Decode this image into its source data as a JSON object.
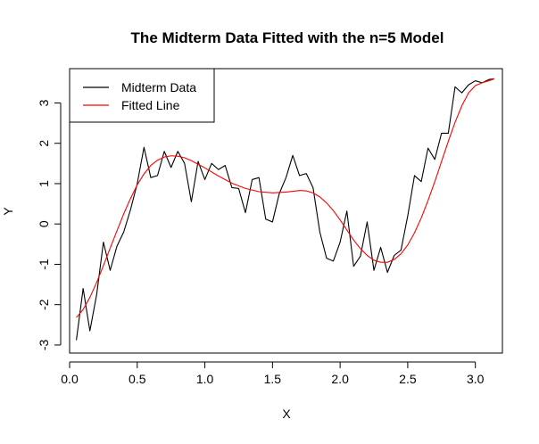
{
  "chart_data": {
    "type": "line",
    "title": "The Midterm Data Fitted with the n=5 Model",
    "xlabel": "X",
    "ylabel": "Y",
    "xlim": [
      0.0,
      3.2
    ],
    "ylim": [
      -3.2,
      3.85
    ],
    "xticks": [
      "0.0",
      "0.5",
      "1.0",
      "1.5",
      "2.0",
      "2.5",
      "3.0"
    ],
    "xtick_values": [
      0.0,
      0.5,
      1.0,
      1.5,
      2.0,
      2.5,
      3.0
    ],
    "yticks": [
      "-3",
      "-2",
      "-1",
      "0",
      "1",
      "2",
      "3"
    ],
    "ytick_values": [
      -3,
      -2,
      -1,
      0,
      1,
      2,
      3
    ],
    "legend_position": "top-left",
    "grid": false,
    "series": [
      {
        "name": "Midterm Data",
        "color": "#000000",
        "x": [
          0.05,
          0.1,
          0.15,
          0.2,
          0.25,
          0.3,
          0.35,
          0.4,
          0.45,
          0.5,
          0.55,
          0.6,
          0.65,
          0.7,
          0.75,
          0.8,
          0.85,
          0.9,
          0.95,
          1.0,
          1.05,
          1.1,
          1.15,
          1.2,
          1.25,
          1.3,
          1.35,
          1.4,
          1.45,
          1.5,
          1.55,
          1.6,
          1.65,
          1.7,
          1.75,
          1.8,
          1.85,
          1.9,
          1.95,
          2.0,
          2.05,
          2.1,
          2.15,
          2.2,
          2.25,
          2.3,
          2.35,
          2.4,
          2.45,
          2.5,
          2.55,
          2.6,
          2.65,
          2.7,
          2.75,
          2.8,
          2.85,
          2.9,
          2.95,
          3.0,
          3.05,
          3.1,
          3.14
        ],
        "y": [
          -2.88,
          -1.6,
          -2.65,
          -1.75,
          -0.45,
          -1.15,
          -0.55,
          -0.2,
          0.35,
          1.0,
          1.9,
          1.15,
          1.2,
          1.8,
          1.4,
          1.8,
          1.5,
          0.55,
          1.55,
          1.1,
          1.5,
          1.35,
          1.45,
          0.9,
          0.88,
          0.28,
          1.1,
          1.15,
          0.12,
          0.05,
          0.75,
          1.15,
          1.7,
          1.2,
          1.25,
          0.9,
          -0.2,
          -0.85,
          -0.92,
          -0.45,
          0.32,
          -1.05,
          -0.8,
          0.05,
          -1.15,
          -0.58,
          -1.2,
          -0.78,
          -0.65,
          0.2,
          1.2,
          1.05,
          1.88,
          1.6,
          2.25,
          2.25,
          3.4,
          3.25,
          3.45,
          3.55,
          3.5,
          3.58,
          3.6
        ],
        "color_note": "black"
      },
      {
        "name": "Fitted Line",
        "color": "#ff0000",
        "x": [
          0.05,
          0.1,
          0.15,
          0.2,
          0.25,
          0.3,
          0.35,
          0.4,
          0.45,
          0.5,
          0.55,
          0.6,
          0.65,
          0.7,
          0.75,
          0.8,
          0.85,
          0.9,
          0.95,
          1.0,
          1.1,
          1.2,
          1.3,
          1.4,
          1.5,
          1.6,
          1.65,
          1.7,
          1.75,
          1.8,
          1.85,
          1.9,
          1.95,
          2.0,
          2.05,
          2.1,
          2.15,
          2.2,
          2.25,
          2.3,
          2.35,
          2.4,
          2.45,
          2.5,
          2.55,
          2.6,
          2.65,
          2.7,
          2.75,
          2.8,
          2.85,
          2.9,
          2.95,
          3.0,
          3.05,
          3.1,
          3.14
        ],
        "y": [
          -2.32,
          -2.12,
          -1.82,
          -1.45,
          -1.03,
          -0.6,
          -0.17,
          0.25,
          0.63,
          0.97,
          1.24,
          1.45,
          1.58,
          1.66,
          1.69,
          1.68,
          1.64,
          1.57,
          1.48,
          1.39,
          1.19,
          1.01,
          0.88,
          0.8,
          0.77,
          0.79,
          0.81,
          0.83,
          0.82,
          0.77,
          0.67,
          0.52,
          0.33,
          0.1,
          -0.15,
          -0.4,
          -0.61,
          -0.78,
          -0.9,
          -0.95,
          -0.95,
          -0.88,
          -0.74,
          -0.52,
          -0.22,
          0.15,
          0.58,
          1.05,
          1.55,
          2.05,
          2.52,
          2.93,
          3.25,
          3.43,
          3.5,
          3.55,
          3.6
        ],
        "color_note": "red"
      }
    ]
  }
}
